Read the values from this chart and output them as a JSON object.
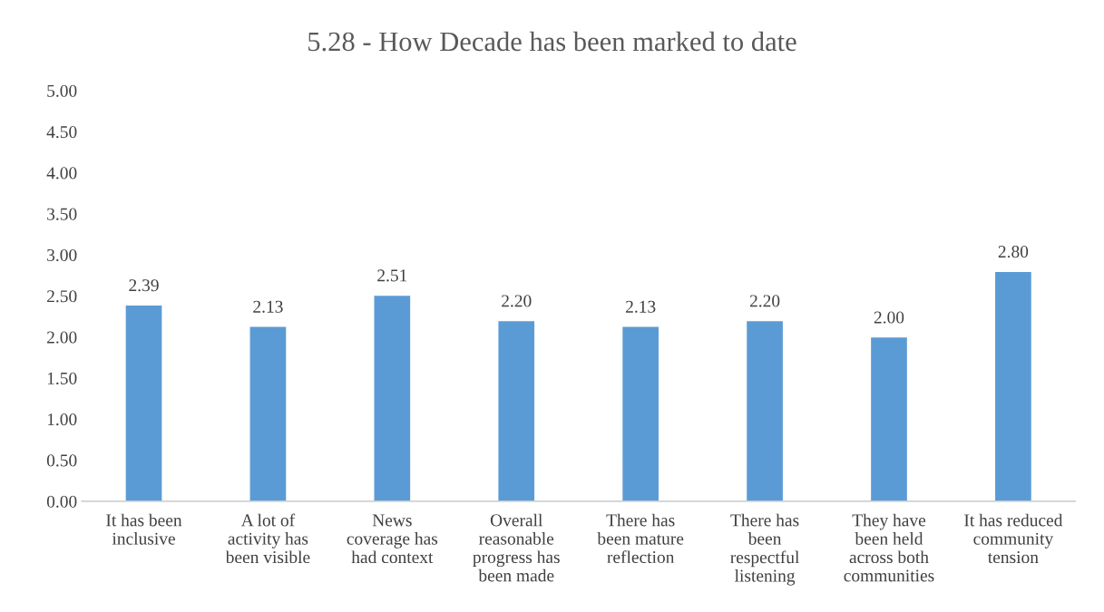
{
  "chart_data": {
    "type": "bar",
    "title": "5.28 - How Decade has been marked to date",
    "categories": [
      "It has been\ninclusive",
      "A lot of\nactivity has\nbeen visible",
      "News\ncoverage has\nhad context",
      "Overall\nreasonable\nprogress has\nbeen made",
      "There has\nbeen mature\nreflection",
      "There has\nbeen\nrespectful\nlistening",
      "They have\nbeen held\nacross both\ncommunities",
      "It has reduced\ncommunity\ntension"
    ],
    "values": [
      2.39,
      2.13,
      2.51,
      2.2,
      2.13,
      2.2,
      2.0,
      2.8
    ],
    "value_labels": [
      "2.39",
      "2.13",
      "2.51",
      "2.20",
      "2.13",
      "2.20",
      "2.00",
      "2.80"
    ],
    "color": "#5b9bd5",
    "ylim": [
      0,
      5
    ],
    "yticks": [
      {
        "value": 0,
        "label": "0.00"
      },
      {
        "value": 0.5,
        "label": "0.50"
      },
      {
        "value": 1,
        "label": "1.00"
      },
      {
        "value": 1.5,
        "label": "1.50"
      },
      {
        "value": 2,
        "label": "2.00"
      },
      {
        "value": 2.5,
        "label": "2.50"
      },
      {
        "value": 3,
        "label": "3.00"
      },
      {
        "value": 3.5,
        "label": "3.50"
      },
      {
        "value": 4,
        "label": "4.00"
      },
      {
        "value": 4.5,
        "label": "4.50"
      },
      {
        "value": 5,
        "label": "5.00"
      }
    ],
    "grid": false
  }
}
